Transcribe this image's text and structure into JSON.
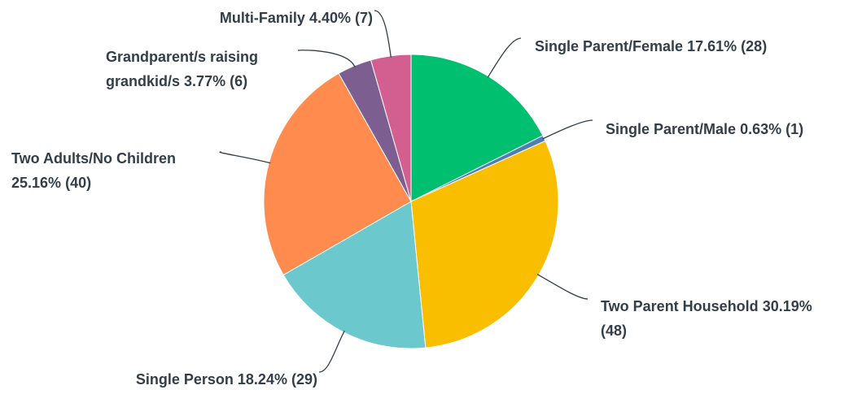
{
  "chart_data": {
    "type": "pie",
    "categories": [
      "Single Parent/Female",
      "Single Parent/Male",
      "Two Parent Household",
      "Single Person",
      "Two Adults/No Children",
      "Grandparent/s raising grandkid/s",
      "Multi-Family"
    ],
    "values": [
      17.61,
      0.63,
      30.19,
      18.24,
      25.16,
      3.77,
      4.4
    ],
    "value_labels": [
      "17.61%",
      "0.63%",
      "30.19%",
      "18.24%",
      "25.16%",
      "3.77%",
      "4.40%"
    ],
    "counts": [
      28,
      1,
      48,
      29,
      40,
      6,
      7
    ],
    "count_labels": [
      "(28)",
      "(1)",
      "(48)",
      "(29)",
      "(40)",
      "(6)",
      "(7)"
    ],
    "colors": [
      "#00bf6f",
      "#507cb6",
      "#f9be00",
      "#6bc8cd",
      "#ff8b4f",
      "#7d5e90",
      "#d25f90"
    ]
  }
}
